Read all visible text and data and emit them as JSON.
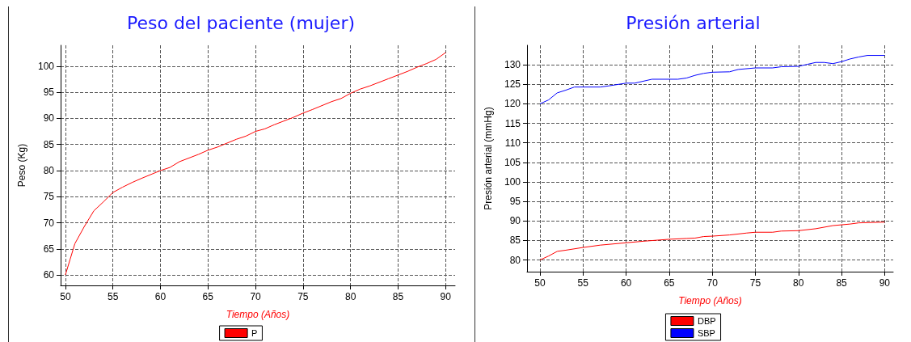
{
  "chart_data": [
    {
      "type": "line",
      "title": "Peso del paciente (mujer)",
      "xlabel": "Tiempo (Años)",
      "ylabel": "Peso (Kg)",
      "xlim": [
        49.5,
        91
      ],
      "xticks": [
        50,
        55,
        60,
        65,
        70,
        75,
        80,
        85,
        90
      ],
      "ylim": [
        58,
        104
      ],
      "yticks": [
        60,
        65,
        70,
        75,
        80,
        85,
        90,
        95,
        100
      ],
      "grid": true,
      "legend": "bottom",
      "marker": "none",
      "line_style": "solid",
      "series": [
        {
          "name": "P",
          "color": "#ff0000",
          "x": [
            50,
            50.5,
            51,
            52,
            53,
            54,
            55,
            56,
            57,
            58,
            60,
            61,
            62,
            64,
            65,
            66,
            68,
            69,
            70,
            71,
            72,
            74,
            75,
            76,
            78,
            79,
            80,
            81,
            82,
            84,
            85,
            86,
            87,
            88,
            89,
            90
          ],
          "values": [
            60,
            63,
            66,
            69.3,
            72.3,
            74,
            75.8,
            76.8,
            77.7,
            78.5,
            80,
            80.6,
            81.7,
            83.1,
            83.9,
            84.5,
            86,
            86.6,
            87.5,
            88,
            88.8,
            90.2,
            91,
            91.7,
            93.2,
            93.8,
            94.8,
            95.6,
            96.2,
            97.6,
            98.3,
            99,
            99.8,
            100.5,
            101.3,
            102.6
          ]
        }
      ]
    },
    {
      "type": "line",
      "title": "Presión arterial",
      "xlabel": "Tiempo (Años)",
      "ylabel": "Presión arterial (mmHg)",
      "xlim": [
        48.5,
        91
      ],
      "xticks": [
        50,
        55,
        60,
        65,
        70,
        75,
        80,
        85,
        90
      ],
      "ylim": [
        77,
        135
      ],
      "yticks": [
        80,
        85,
        90,
        95,
        100,
        105,
        110,
        115,
        120,
        125,
        130
      ],
      "grid": true,
      "legend": "bottom",
      "marker": "none",
      "line_style": "solid",
      "series": [
        {
          "name": "DBP",
          "color": "#ff0000",
          "x": [
            50,
            51,
            52,
            53,
            55,
            57,
            60,
            62,
            65,
            67,
            68,
            69,
            70,
            72,
            74,
            75,
            77,
            78,
            80,
            82,
            84,
            86,
            87,
            90
          ],
          "values": [
            80,
            81,
            82.2,
            82.5,
            83.2,
            83.8,
            84.4,
            84.8,
            85.3,
            85.5,
            85.6,
            86,
            86.1,
            86.4,
            86.9,
            87.1,
            87.1,
            87.4,
            87.5,
            88,
            88.8,
            89.2,
            89.5,
            89.7
          ]
        },
        {
          "name": "SBP",
          "color": "#0000ff",
          "x": [
            50,
            51,
            52,
            53,
            54,
            57,
            58,
            60,
            61,
            63,
            66,
            67,
            68,
            69,
            70,
            72,
            73,
            75,
            77,
            78,
            80,
            81,
            82,
            83,
            84,
            85,
            86,
            87,
            88,
            90
          ],
          "values": [
            120,
            121,
            122.8,
            123.5,
            124.3,
            124.3,
            124.6,
            125.3,
            125.3,
            126.3,
            126.3,
            126.6,
            127.3,
            127.8,
            128.1,
            128.2,
            128.8,
            129.2,
            129.2,
            129.5,
            129.6,
            130.1,
            130.6,
            130.6,
            130.3,
            130.8,
            131.5,
            132,
            132.4,
            132.4
          ]
        }
      ]
    }
  ]
}
